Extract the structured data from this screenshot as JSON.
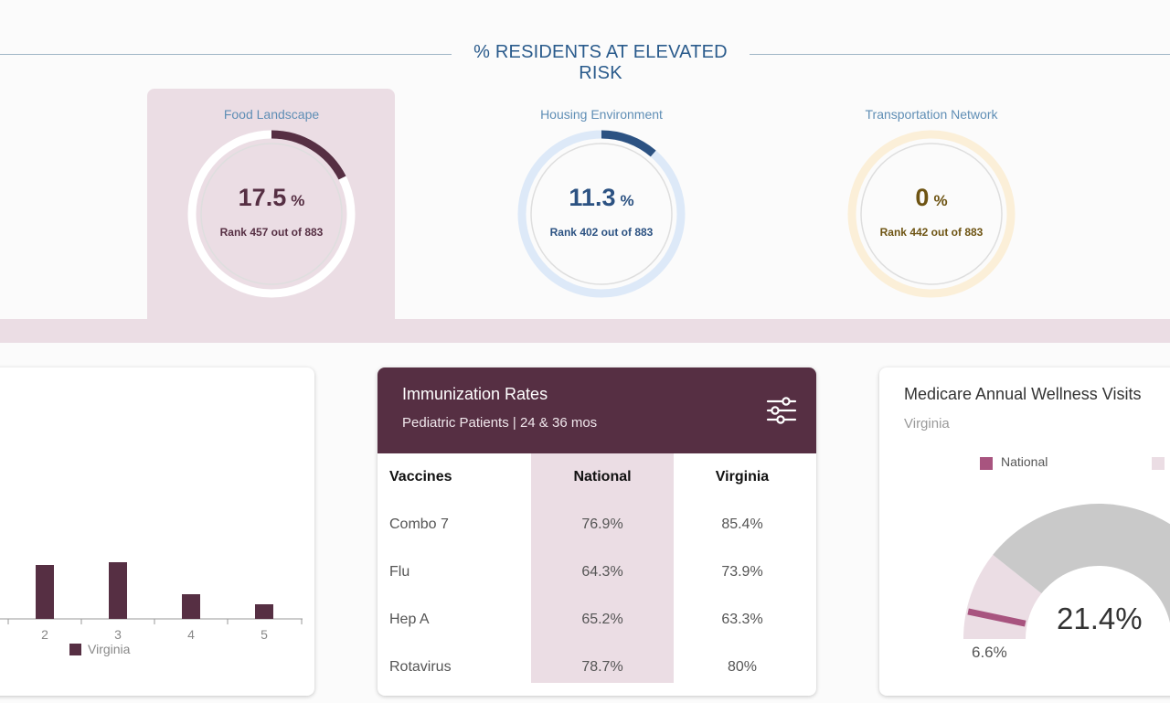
{
  "section": {
    "title": "% RESIDENTS AT ELEVATED RISK"
  },
  "gauges": [
    {
      "title": "Food Landscape",
      "value": "17.5",
      "unit": "%",
      "rank": "Rank 457 out of 883",
      "fraction": 0.175,
      "color": "#562f43",
      "track": "#ffffff",
      "inner": "#ebdde4"
    },
    {
      "title": "Housing Environment",
      "value": "11.3",
      "unit": "%",
      "rank": "Rank 402 out of 883",
      "fraction": 0.113,
      "color": "#2c5282",
      "track": "#dde9f8",
      "inner": "#fbfbfb"
    },
    {
      "title": "Transportation Network",
      "value": "0",
      "unit": "%",
      "rank": "Rank 442 out of 883",
      "fraction": 0,
      "color": "#6e5413",
      "track": "#fbefd8",
      "inner": "#fbfbfb"
    }
  ],
  "left_chart": {
    "x_ticks": [
      "2",
      "3",
      "4",
      "5"
    ],
    "legend": "Virginia",
    "bar_color": "#562f43"
  },
  "chart_data": {
    "type": "bar",
    "categories": [
      "2",
      "3",
      "4",
      "5"
    ],
    "series": [
      {
        "name": "Virginia",
        "values": [
          59,
          62,
          27,
          16
        ]
      }
    ],
    "ylim": [
      0,
      100
    ]
  },
  "immunization": {
    "title": "Immunization Rates",
    "subtitle": "Pediatric Patients | 24 & 36 mos",
    "filter_icon": "sliders-icon",
    "headers": {
      "vaccines": "Vaccines",
      "national": "National",
      "state": "Virginia"
    },
    "rows": [
      {
        "vaccine": "Combo 7",
        "national": "76.9%",
        "state": "85.4%"
      },
      {
        "vaccine": "Flu",
        "national": "64.3%",
        "state": "73.9%"
      },
      {
        "vaccine": "Hep A",
        "national": "65.2%",
        "state": "63.3%"
      },
      {
        "vaccine": "Rotavirus",
        "national": "78.7%",
        "state": "80%"
      }
    ]
  },
  "medicare": {
    "title": "Medicare Annual Wellness Visits",
    "subtitle": "Virginia",
    "legend_national": "National",
    "national_color": "#a8547f",
    "state_color": "#ebdde4",
    "value_big": "21.4%",
    "value_small": "6.6%"
  }
}
